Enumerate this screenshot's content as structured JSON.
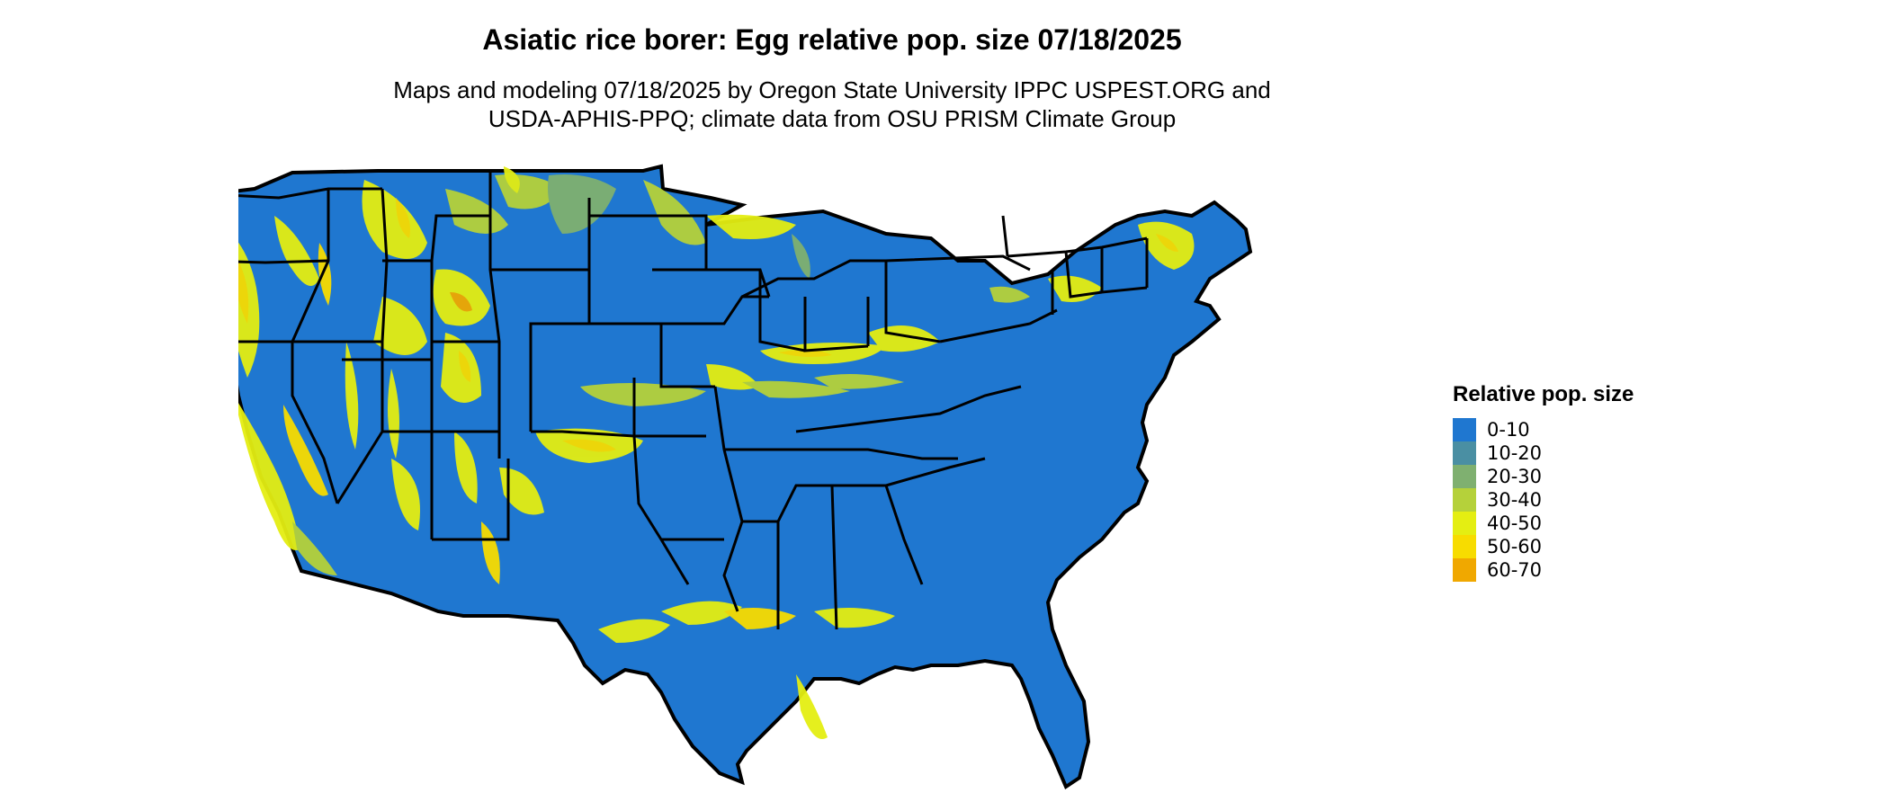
{
  "title": "Asiatic rice borer: Egg relative pop. size 07/18/2025",
  "subtitle_line1": "Maps and modeling 07/18/2025 by Oregon State University IPPC USPEST.ORG and",
  "subtitle_line2": "USDA-APHIS-PPQ; climate data from OSU PRISM Climate Group",
  "legend": {
    "title": "Relative pop. size",
    "items": [
      {
        "label": "0-10",
        "color": "#1f77d0"
      },
      {
        "label": "10-20",
        "color": "#4a8fa3"
      },
      {
        "label": "20-30",
        "color": "#7fb070"
      },
      {
        "label": "30-40",
        "color": "#b5d13a"
      },
      {
        "label": "40-50",
        "color": "#e4ee12"
      },
      {
        "label": "50-60",
        "color": "#f7dc00"
      },
      {
        "label": "60-70",
        "color": "#f0a800"
      }
    ]
  },
  "colors": {
    "base": "#1f77d0",
    "border": "#000000"
  }
}
